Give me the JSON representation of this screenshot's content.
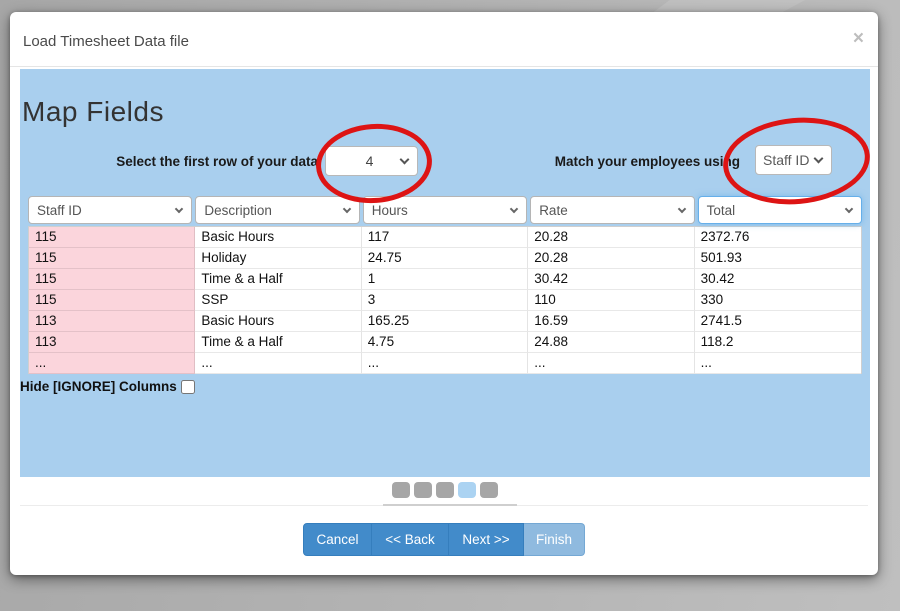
{
  "modal": {
    "title": "Load Timesheet Data file",
    "close_icon": "×"
  },
  "wizard": {
    "heading": "Map Fields",
    "first_row_label": "Select the first row of your data",
    "first_row_value": "4",
    "match_label": "Match your employees using",
    "match_value": "Staff ID",
    "hide_ignore_label": "Hide [IGNORE] Columns",
    "hide_ignore_checked": false,
    "steps": {
      "count": 5,
      "active_index": 3
    }
  },
  "table": {
    "column_selects": [
      "Staff ID",
      "Description",
      "Hours",
      "Rate",
      "Total"
    ],
    "focused_column_index": 4,
    "rows": [
      [
        "115",
        "Basic Hours",
        "117",
        "20.28",
        "2372.76"
      ],
      [
        "115",
        "Holiday",
        "24.75",
        "20.28",
        "501.93"
      ],
      [
        "115",
        "Time & a Half",
        "1",
        "30.42",
        "30.42"
      ],
      [
        "115",
        "SSP",
        "3",
        "110",
        "330"
      ],
      [
        "113",
        "Basic Hours",
        "165.25",
        "16.59",
        "2741.5"
      ],
      [
        "113",
        "Time & a Half",
        "4.75",
        "24.88",
        "118.2"
      ],
      [
        "...",
        "...",
        "...",
        "...",
        "..."
      ]
    ]
  },
  "footer": {
    "buttons": [
      {
        "label": "Cancel",
        "style": "primary"
      },
      {
        "label": "<< Back",
        "style": "primary"
      },
      {
        "label": "Next >>",
        "style": "primary"
      },
      {
        "label": "Finish",
        "style": "disabled"
      }
    ]
  },
  "colors": {
    "panel_blue": "#a9cfee",
    "highlight_pink": "#fbd5dc",
    "primary_button_blue": "#428bca",
    "disabled_button_blue": "#8fbadf",
    "annotation_red": "#dd1414",
    "step_active_blue": "#abd3f2",
    "step_inactive_gray": "#a6a6a6"
  }
}
